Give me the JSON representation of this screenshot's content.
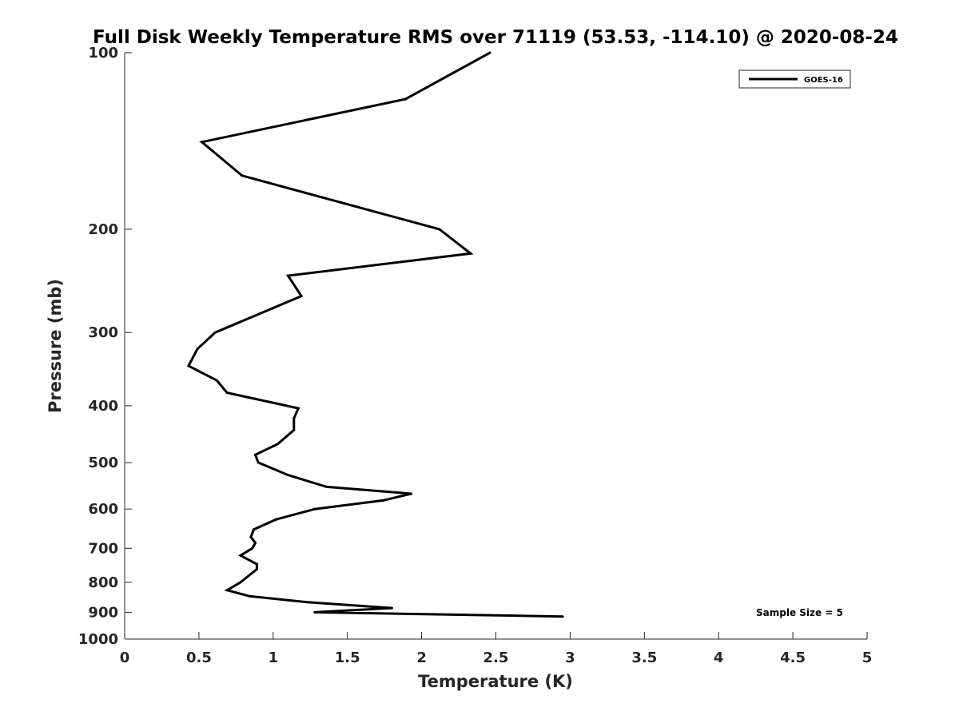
{
  "chart_data": {
    "type": "line",
    "title": "Full Disk Weekly Temperature RMS over 71119 (53.53, -114.10) @ 2020-08-24",
    "xlabel": "Temperature (K)",
    "ylabel": "Pressure (mb)",
    "xlim": [
      0,
      5
    ],
    "ylim": [
      1000,
      100
    ],
    "y_scale": "log",
    "y_reversed": true,
    "x_ticks": [
      0,
      0.5,
      1,
      1.5,
      2,
      2.5,
      3,
      3.5,
      4,
      4.5,
      5
    ],
    "x_tick_labels": [
      "0",
      "0.5",
      "1",
      "1.5",
      "2",
      "2.5",
      "3",
      "3.5",
      "4",
      "4.5",
      "5"
    ],
    "y_ticks": [
      100,
      200,
      300,
      400,
      500,
      600,
      700,
      800,
      900,
      1000
    ],
    "y_tick_labels": [
      "100",
      "200",
      "300",
      "400",
      "500",
      "600",
      "700",
      "800",
      "900",
      "1000"
    ],
    "grid": false,
    "legend_position": "top-right",
    "annotation": "Sample Size = 5",
    "series": [
      {
        "name": "GOES-16",
        "color": "#000000",
        "points": [
          {
            "x": 2.46,
            "y": 100
          },
          {
            "x": 1.89,
            "y": 120
          },
          {
            "x": 0.52,
            "y": 142
          },
          {
            "x": 0.79,
            "y": 162
          },
          {
            "x": 2.12,
            "y": 200
          },
          {
            "x": 2.33,
            "y": 220
          },
          {
            "x": 1.1,
            "y": 240
          },
          {
            "x": 1.19,
            "y": 260
          },
          {
            "x": 0.61,
            "y": 300
          },
          {
            "x": 0.49,
            "y": 320
          },
          {
            "x": 0.43,
            "y": 342
          },
          {
            "x": 0.62,
            "y": 362
          },
          {
            "x": 0.69,
            "y": 380
          },
          {
            "x": 1.17,
            "y": 404
          },
          {
            "x": 1.14,
            "y": 420
          },
          {
            "x": 1.14,
            "y": 440
          },
          {
            "x": 1.03,
            "y": 465
          },
          {
            "x": 0.88,
            "y": 485
          },
          {
            "x": 0.9,
            "y": 500
          },
          {
            "x": 1.1,
            "y": 525
          },
          {
            "x": 1.36,
            "y": 550
          },
          {
            "x": 1.93,
            "y": 565
          },
          {
            "x": 1.74,
            "y": 580
          },
          {
            "x": 1.28,
            "y": 600
          },
          {
            "x": 1.02,
            "y": 625
          },
          {
            "x": 0.87,
            "y": 650
          },
          {
            "x": 0.85,
            "y": 670
          },
          {
            "x": 0.88,
            "y": 685
          },
          {
            "x": 0.86,
            "y": 700
          },
          {
            "x": 0.78,
            "y": 720
          },
          {
            "x": 0.89,
            "y": 745
          },
          {
            "x": 0.89,
            "y": 760
          },
          {
            "x": 0.78,
            "y": 800
          },
          {
            "x": 0.69,
            "y": 825
          },
          {
            "x": 0.84,
            "y": 845
          },
          {
            "x": 1.23,
            "y": 865
          },
          {
            "x": 1.8,
            "y": 885
          },
          {
            "x": 1.28,
            "y": 900
          },
          {
            "x": 2.95,
            "y": 915
          }
        ]
      }
    ]
  }
}
